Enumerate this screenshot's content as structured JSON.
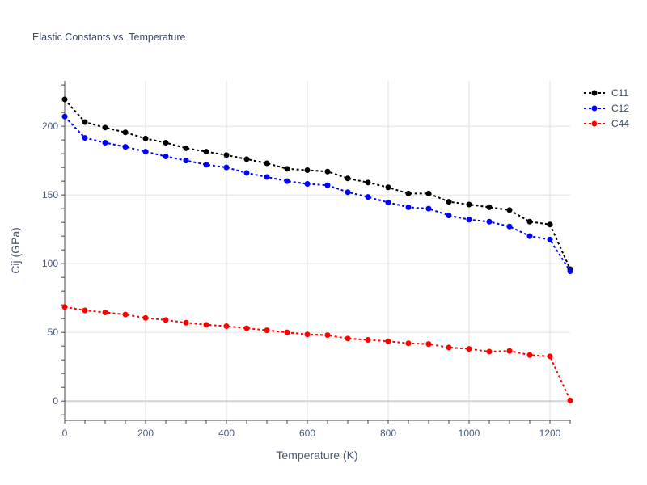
{
  "chart_data": {
    "type": "line",
    "title": "Elastic Constants vs. Temperature",
    "xlabel": "Temperature (K)",
    "ylabel": "Cij (GPa)",
    "xlim": [
      0,
      1250
    ],
    "ylim": [
      -14,
      233
    ],
    "xticks": [
      0,
      200,
      400,
      600,
      800,
      1000,
      1200
    ],
    "yticks": [
      0,
      50,
      100,
      150,
      200
    ],
    "grid": true,
    "legend_position": "top-right",
    "x": [
      0,
      50,
      100,
      150,
      200,
      250,
      300,
      350,
      400,
      450,
      500,
      550,
      600,
      650,
      700,
      750,
      800,
      850,
      900,
      950,
      1000,
      1050,
      1100,
      1150,
      1200,
      1250
    ],
    "series": [
      {
        "name": "C11",
        "color": "#000000",
        "values": [
          219.5,
          203,
          199,
          195.5,
          191,
          188,
          184,
          181.5,
          179,
          176,
          173,
          169,
          168,
          167,
          162,
          159,
          155.5,
          151,
          151,
          145,
          143,
          141,
          139,
          130.5,
          128.5,
          96
        ]
      },
      {
        "name": "C12",
        "color": "#0000ff",
        "values": [
          207,
          191.5,
          188,
          185,
          181.5,
          178,
          175,
          172,
          170,
          166,
          163,
          160,
          158,
          157,
          152,
          148.5,
          144.5,
          141,
          140,
          135,
          132,
          130.5,
          127,
          120,
          117.5,
          94.5
        ]
      },
      {
        "name": "C44",
        "color": "#ff0000",
        "values": [
          68.5,
          66,
          64.5,
          63,
          60.5,
          59,
          57,
          55.5,
          54.5,
          53,
          51.5,
          50,
          48.5,
          48,
          45.5,
          44.5,
          43.5,
          42,
          41.5,
          39,
          38,
          36,
          36.5,
          33.5,
          32.5,
          0.5
        ]
      }
    ]
  }
}
